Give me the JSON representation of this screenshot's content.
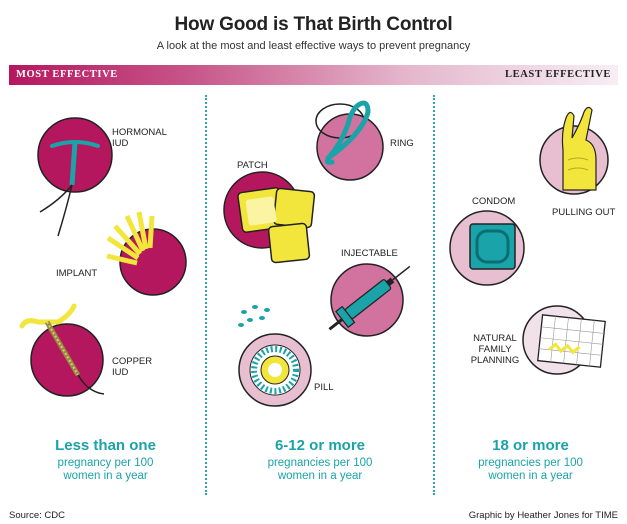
{
  "title": "How Good is That Birth Control",
  "subtitle": "A look at the most and least effective ways to prevent pregnancy",
  "bar": {
    "left_label": "MOST EFFECTIVE",
    "right_label": "LEAST EFFECTIVE"
  },
  "items": {
    "hormonal_iud": "HORMONAL\nIUD",
    "implant": "IMPLANT",
    "copper_iud": "COPPER\nIUD",
    "ring": "RING",
    "patch": "PATCH",
    "injectable": "INJECTABLE",
    "pill": "PILL",
    "condom": "CONDOM",
    "pulling_out": "PULLING OUT",
    "natural_family_planning": "NATURAL\nFAMILY\nPLANNING"
  },
  "columns": [
    {
      "headline": "Less than one",
      "line1": "pregnancy per 100",
      "line2": "women in a year"
    },
    {
      "headline": "6-12 or more",
      "line1": "pregnancies per 100",
      "line2": "women in a year"
    },
    {
      "headline": "18 or more",
      "line1": "pregnancies per 100",
      "line2": "women in a year"
    }
  ],
  "source": "Source: CDC",
  "credit": "Graphic by Heather Jones for TIME",
  "colors": {
    "magenta": "#b5175e",
    "pink": "#c95b8c",
    "light_pink": "#e7bfd0",
    "teal": "#1aa3a8",
    "yellow": "#f2e63c"
  }
}
